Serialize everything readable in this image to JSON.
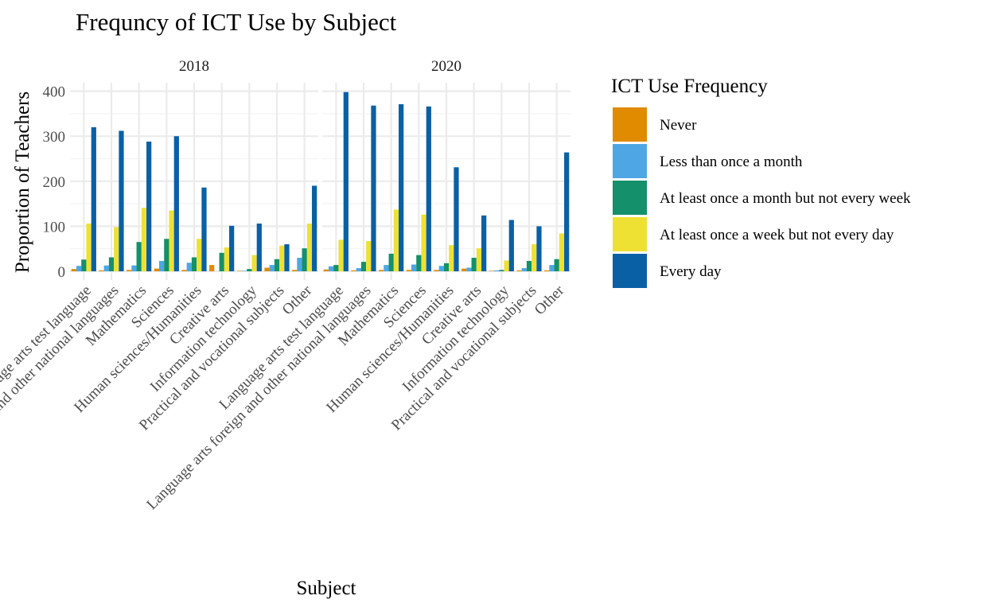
{
  "chart_data": {
    "type": "bar",
    "title": "Frequncy of ICT Use by Subject",
    "xlabel": "Subject",
    "ylabel": "Proportion of Teachers",
    "ylim": [
      0,
      420
    ],
    "yticks": [
      0,
      100,
      200,
      300,
      400
    ],
    "grid": true,
    "legend_title": "ICT Use Frequency",
    "legend_position": "right",
    "categories": [
      "Language arts test language",
      "Language arts foreign and other national languages",
      "Mathematics",
      "Sciences",
      "Human sciences/Humanities",
      "Creative arts",
      "Information technology",
      "Practical and vocational subjects",
      "Other"
    ],
    "series_meta": [
      {
        "name": "Never",
        "color": "#E08B00"
      },
      {
        "name": "Less than once a month",
        "color": "#4EA7E4"
      },
      {
        "name": "At least once a month but not every week",
        "color": "#14906A"
      },
      {
        "name": "At least once a week but not every day",
        "color": "#EFE133"
      },
      {
        "name": "Every day",
        "color": "#0A60A5"
      }
    ],
    "panels": [
      {
        "label": "2018",
        "values": [
          [
            5,
            12,
            26,
            106,
            320
          ],
          [
            2,
            13,
            31,
            98,
            312
          ],
          [
            3,
            13,
            65,
            141,
            288
          ],
          [
            6,
            23,
            72,
            135,
            300
          ],
          [
            3,
            19,
            31,
            72,
            186
          ],
          [
            14,
            0,
            41,
            53,
            101
          ],
          [
            1,
            1,
            5,
            36,
            106
          ],
          [
            8,
            14,
            27,
            57,
            60
          ],
          [
            3,
            30,
            51,
            106,
            190
          ]
        ]
      },
      {
        "label": "2020",
        "values": [
          [
            4,
            11,
            14,
            70,
            398
          ],
          [
            2,
            7,
            21,
            67,
            368
          ],
          [
            3,
            14,
            39,
            137,
            371
          ],
          [
            3,
            15,
            36,
            126,
            366
          ],
          [
            3,
            12,
            18,
            58,
            231
          ],
          [
            6,
            8,
            30,
            51,
            124
          ],
          [
            1,
            2,
            3,
            24,
            114
          ],
          [
            2,
            7,
            23,
            60,
            100
          ],
          [
            2,
            14,
            27,
            84,
            264
          ]
        ]
      }
    ]
  }
}
